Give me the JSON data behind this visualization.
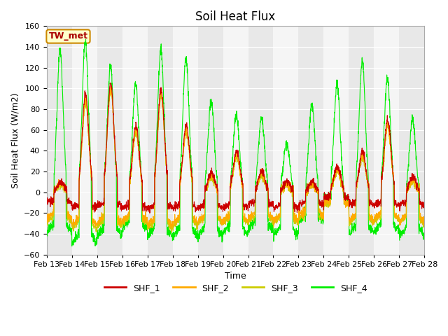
{
  "title": "Soil Heat Flux",
  "xlabel": "Time",
  "ylabel": "Soil Heat Flux (W/m2)",
  "ylim": [
    -60,
    160
  ],
  "yticks": [
    -60,
    -40,
    -20,
    0,
    20,
    40,
    60,
    80,
    100,
    120,
    140,
    160
  ],
  "date_start": 13,
  "n_days": 15,
  "xtick_dates": [
    "Feb 13",
    "Feb 14",
    "Feb 15",
    "Feb 16",
    "Feb 17",
    "Feb 18",
    "Feb 19",
    "Feb 20",
    "Feb 21",
    "Feb 22",
    "Feb 23",
    "Feb 24",
    "Feb 25",
    "Feb 26",
    "Feb 27",
    "Feb 28"
  ],
  "series_colors": {
    "SHF_1": "#cc0000",
    "SHF_2": "#ffaa00",
    "SHF_3": "#cccc00",
    "SHF_4": "#00ee00"
  },
  "series_labels": [
    "SHF_1",
    "SHF_2",
    "SHF_3",
    "SHF_4"
  ],
  "legend_label": "TW_met",
  "legend_bg": "#ffffcc",
  "legend_border": "#cc8800",
  "band_colors": [
    "#e8e8e8",
    "#f5f5f5"
  ],
  "grid_color": "#ffffff",
  "line_width": 0.8,
  "title_fontsize": 12,
  "axis_fontsize": 9,
  "tick_fontsize": 8,
  "figsize": [
    6.4,
    4.8
  ],
  "dpi": 100
}
